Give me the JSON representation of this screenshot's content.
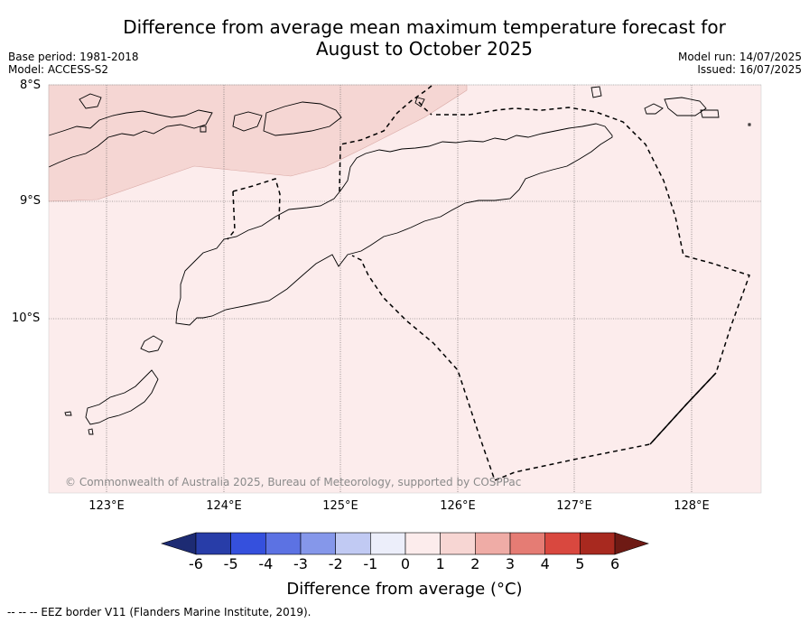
{
  "title_line1": "Difference from average mean maximum temperature forecast for",
  "title_line2": "August to October 2025",
  "base_period": "Base period: 1981-2018",
  "model": "Model: ACCESS-S2",
  "model_run": "Model run: 14/07/2025",
  "issued": "Issued: 16/07/2025",
  "credit": "© Commonwealth of Australia 2025, Bureau of Meteorology, supported by COSPPac",
  "lat_labels": [
    "8°S",
    "9°S",
    "10°S"
  ],
  "lon_labels": [
    "123°E",
    "124°E",
    "125°E",
    "126°E",
    "127°E",
    "128°E"
  ],
  "colorbar": {
    "title": "Difference from average (°C)",
    "ticks": [
      "-6",
      "-5",
      "-4",
      "-3",
      "-2",
      "-1",
      "0",
      "1",
      "2",
      "3",
      "4",
      "5",
      "6"
    ],
    "colors": [
      "#1d2b73",
      "#283da8",
      "#3550dd",
      "#5c72e3",
      "#8597ea",
      "#c1caf3",
      "#eceefa",
      "#fcecec",
      "#f7d6d3",
      "#efaca6",
      "#e57c74",
      "#d9483f",
      "#a8291f",
      "#6e1a14"
    ]
  },
  "map": {
    "area_anomaly_class": "0 to 1",
    "area_color": "#fcecec",
    "northwest_band_class": "1 to 2",
    "northwest_band_color": "#f5d6d3"
  },
  "footer": "--  --  -- EEZ border V11 (Flanders Marine Institute, 2019)."
}
